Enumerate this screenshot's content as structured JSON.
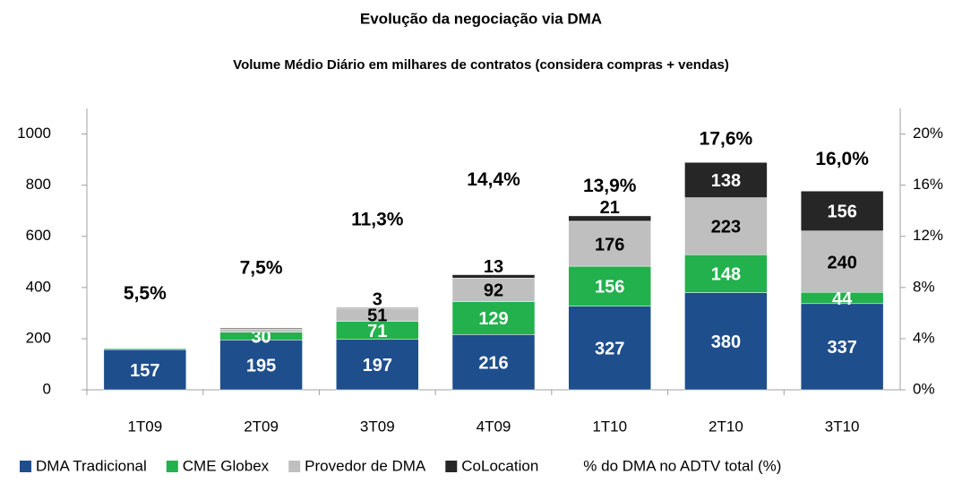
{
  "chart_data": {
    "type": "bar",
    "stacked": true,
    "title": "Evolução da negociação via DMA",
    "subtitle": "Volume Médio Diário em milhares de contratos (considera compras + vendas)",
    "categories": [
      "1T09",
      "2T09",
      "3T09",
      "4T09",
      "1T10",
      "2T10",
      "3T10"
    ],
    "series": [
      {
        "name": "DMA Tradicional",
        "color": "#1f4e8c",
        "label_color": "#ffffff",
        "values": [
          157,
          195,
          197,
          216,
          327,
          380,
          337
        ]
      },
      {
        "name": "CME Globex",
        "color": "#22b14c",
        "label_color": "#ffffff",
        "values": [
          4,
          30,
          71,
          129,
          156,
          148,
          44
        ],
        "value_labels": [
          null,
          "30",
          "71",
          "129",
          "156",
          "148",
          "44"
        ]
      },
      {
        "name": "Provedor de DMA",
        "color": "#bfbfbf",
        "label_color": "#000000",
        "values": [
          null,
          12,
          51,
          92,
          176,
          223,
          240
        ],
        "value_labels": [
          null,
          null,
          "51",
          "92",
          "176",
          "223",
          "240"
        ]
      },
      {
        "name": "CoLocation",
        "color": "#262626",
        "label_color": "#ffffff",
        "values": [
          null,
          4,
          3,
          13,
          21,
          138,
          156
        ],
        "value_labels": [
          null,
          null,
          "3",
          "13",
          "21",
          "138",
          "156"
        ]
      },
      {
        "name": "% do DMA no ADTV total (%)",
        "axis": "y2",
        "type": "label",
        "values": [
          5.5,
          7.5,
          11.3,
          14.4,
          13.9,
          17.6,
          16.0
        ],
        "value_labels": [
          "5,5%",
          "7,5%",
          "11,3%",
          "14,4%",
          "13,9%",
          "17,6%",
          "16,0%"
        ]
      }
    ],
    "ylim": [
      0,
      1100
    ],
    "yticks": [
      0,
      200,
      400,
      600,
      800,
      1000
    ],
    "y2lim": [
      0,
      22
    ],
    "y2ticks": [
      {
        "value": 0,
        "label": "0%"
      },
      {
        "value": 4,
        "label": "4%"
      },
      {
        "value": 8,
        "label": "8%"
      },
      {
        "value": 12,
        "label": "12%"
      },
      {
        "value": 16,
        "label": "16%"
      },
      {
        "value": 20,
        "label": "20%"
      }
    ],
    "legend": "bottom"
  }
}
